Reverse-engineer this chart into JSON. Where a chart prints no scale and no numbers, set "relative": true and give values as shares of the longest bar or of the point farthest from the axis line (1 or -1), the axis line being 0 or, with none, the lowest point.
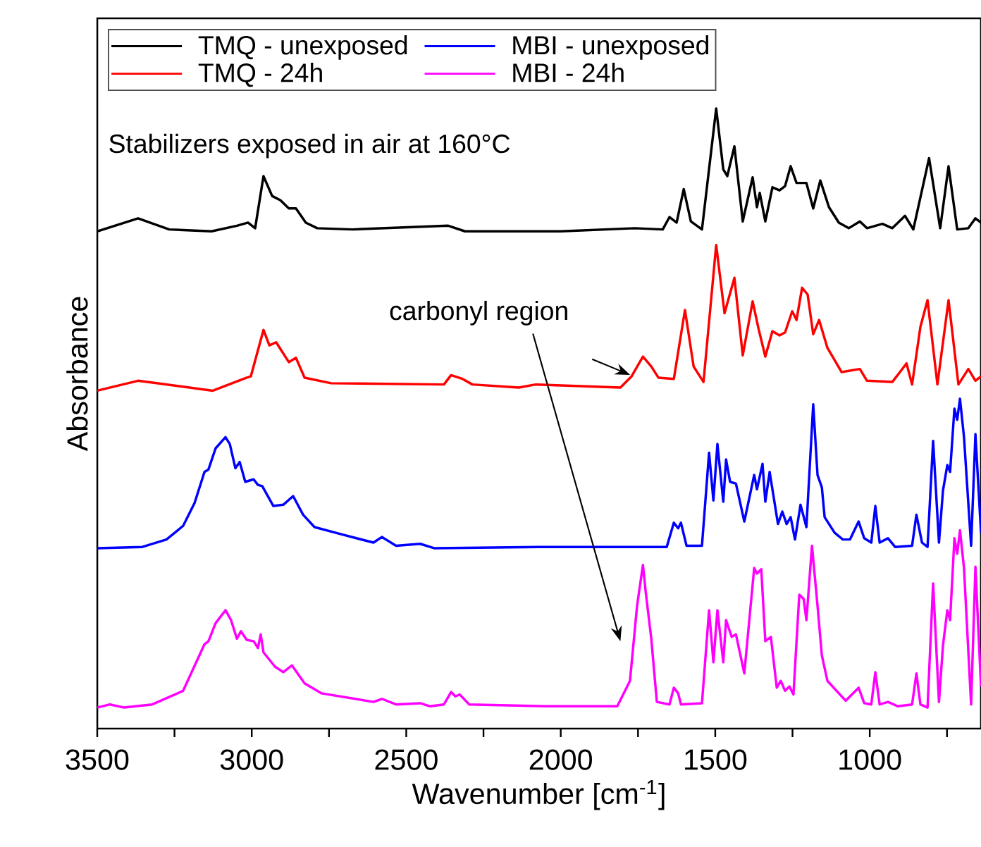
{
  "chart_data": {
    "type": "line",
    "relative": true,
    "xlabel": "Wavenumber [cm$^{-1}$]",
    "ylabel": "Absorbance",
    "xlim": [
      3500,
      640
    ],
    "xticks": [
      3500,
      {
        "value": 3250,
        "label": null
      },
      3000,
      {
        "value": 2750,
        "label": null
      },
      2500,
      {
        "value": 2250,
        "label": null
      },
      2000,
      {
        "value": 1750,
        "label": null
      },
      1500,
      {
        "value": 1250,
        "label": null
      },
      1000,
      {
        "value": 750,
        "label": null
      }
    ],
    "legend": "top left",
    "marker": "none",
    "line_style": "solid",
    "grid": false,
    "annotations": [
      "Stabilizers exposed in air at 160°C",
      "carbonyl region"
    ],
    "series": [
      {
        "name": "TMQ - unexposed",
        "color": "#000000",
        "x": [
          3500,
          3368,
          3267,
          3130,
          3048,
          3012,
          2989,
          2962,
          2934,
          2907,
          2880,
          2857,
          2825,
          2788,
          2674,
          2364,
          2310,
          2000,
          1760,
          1670,
          1648,
          1625,
          1602,
          1579,
          1543,
          1497,
          1474,
          1461,
          1438,
          1411,
          1379,
          1365,
          1356,
          1338,
          1315,
          1292,
          1274,
          1256,
          1237,
          1205,
          1183,
          1160,
          1132,
          1100,
          1068,
          1032,
          1009,
          959,
          927,
          886,
          859,
          808,
          772,
          745,
          717,
          681,
          658,
          640
        ],
        "values": [
          0.802,
          0.823,
          0.805,
          0.802,
          0.811,
          0.816,
          0.807,
          0.891,
          0.859,
          0.852,
          0.839,
          0.839,
          0.816,
          0.807,
          0.805,
          0.811,
          0.802,
          0.802,
          0.807,
          0.805,
          0.825,
          0.816,
          0.87,
          0.818,
          0.805,
          1.0,
          0.902,
          0.891,
          0.939,
          0.818,
          0.889,
          0.841,
          0.864,
          0.818,
          0.873,
          0.868,
          0.875,
          0.907,
          0.88,
          0.88,
          0.839,
          0.884,
          0.841,
          0.816,
          0.807,
          0.818,
          0.807,
          0.814,
          0.807,
          0.827,
          0.805,
          0.92,
          0.807,
          0.907,
          0.805,
          0.807,
          0.823,
          0.816
        ]
      },
      {
        "name": "TMQ - 24h",
        "color": "#ff0000",
        "x": [
          3500,
          3368,
          3126,
          3016,
          3003,
          2962,
          2943,
          2921,
          2880,
          2857,
          2829,
          2743,
          2378,
          2355,
          2318,
          2286,
          2136,
          2081,
          1807,
          1771,
          1734,
          1707,
          1684,
          1634,
          1598,
          1570,
          1538,
          1497,
          1470,
          1438,
          1411,
          1379,
          1360,
          1338,
          1315,
          1292,
          1274,
          1251,
          1237,
          1219,
          1201,
          1183,
          1164,
          1137,
          1091,
          1032,
          1009,
          927,
          881,
          863,
          836,
          813,
          781,
          745,
          713,
          681,
          658,
          640
        ],
        "values": [
          0.545,
          0.561,
          0.545,
          0.566,
          0.568,
          0.643,
          0.618,
          0.623,
          0.591,
          0.598,
          0.566,
          0.557,
          0.555,
          0.57,
          0.564,
          0.555,
          0.55,
          0.555,
          0.55,
          0.568,
          0.6,
          0.584,
          0.566,
          0.564,
          0.675,
          0.584,
          0.559,
          0.78,
          0.67,
          0.727,
          0.602,
          0.689,
          0.645,
          0.6,
          0.641,
          0.634,
          0.639,
          0.673,
          0.659,
          0.711,
          0.7,
          0.636,
          0.659,
          0.614,
          0.575,
          0.58,
          0.561,
          0.559,
          0.589,
          0.555,
          0.648,
          0.691,
          0.555,
          0.691,
          0.555,
          0.58,
          0.561,
          0.568
        ]
      },
      {
        "name": "MBI - unexposed",
        "color": "#0000ff",
        "x": [
          3500,
          3354,
          3276,
          3222,
          3185,
          3153,
          3140,
          3117,
          3085,
          3071,
          3053,
          3039,
          3021,
          2994,
          2980,
          2966,
          2930,
          2898,
          2866,
          2834,
          2797,
          2715,
          2606,
          2579,
          2533,
          2455,
          2410,
          2045,
          1657,
          1634,
          1620,
          1611,
          1593,
          1543,
          1520,
          1506,
          1493,
          1474,
          1465,
          1452,
          1433,
          1406,
          1374,
          1365,
          1347,
          1338,
          1324,
          1297,
          1283,
          1269,
          1256,
          1242,
          1224,
          1205,
          1183,
          1169,
          1155,
          1146,
          1114,
          1087,
          1064,
          1036,
          1018,
          995,
          982,
          968,
          941,
          918,
          863,
          849,
          831,
          813,
          795,
          776,
          763,
          749,
          740,
          726,
          717,
          708,
          695,
          672,
          658,
          640
        ],
        "values": [
          0.291,
          0.293,
          0.305,
          0.327,
          0.364,
          0.414,
          0.418,
          0.452,
          0.47,
          0.459,
          0.42,
          0.43,
          0.398,
          0.402,
          0.393,
          0.391,
          0.359,
          0.361,
          0.375,
          0.345,
          0.325,
          0.314,
          0.3,
          0.309,
          0.295,
          0.298,
          0.291,
          0.293,
          0.293,
          0.332,
          0.323,
          0.332,
          0.295,
          0.295,
          0.445,
          0.368,
          0.459,
          0.366,
          0.434,
          0.398,
          0.395,
          0.334,
          0.409,
          0.386,
          0.427,
          0.366,
          0.414,
          0.33,
          0.35,
          0.33,
          0.341,
          0.305,
          0.361,
          0.325,
          0.523,
          0.409,
          0.389,
          0.341,
          0.316,
          0.305,
          0.305,
          0.334,
          0.307,
          0.3,
          0.359,
          0.3,
          0.307,
          0.293,
          0.295,
          0.345,
          0.3,
          0.293,
          0.464,
          0.3,
          0.384,
          0.425,
          0.414,
          0.516,
          0.498,
          0.532,
          0.47,
          0.295,
          0.475,
          0.316
        ]
      },
      {
        "name": "MBI - 24h",
        "color": "#ff00ff",
        "x": [
          3500,
          3459,
          3413,
          3322,
          3222,
          3153,
          3140,
          3117,
          3085,
          3067,
          3048,
          3035,
          3016,
          2994,
          2980,
          2971,
          2962,
          2925,
          2898,
          2870,
          2829,
          2775,
          2606,
          2579,
          2533,
          2455,
          2423,
          2378,
          2355,
          2341,
          2327,
          2296,
          2045,
          1817,
          1776,
          1753,
          1734,
          1725,
          1707,
          1689,
          1648,
          1634,
          1620,
          1611,
          1543,
          1520,
          1506,
          1493,
          1474,
          1465,
          1447,
          1433,
          1406,
          1374,
          1365,
          1351,
          1338,
          1320,
          1301,
          1288,
          1274,
          1260,
          1247,
          1228,
          1214,
          1205,
          1187,
          1169,
          1155,
          1137,
          1078,
          1036,
          1018,
          995,
          982,
          968,
          941,
          909,
          863,
          849,
          836,
          813,
          795,
          776,
          763,
          749,
          740,
          726,
          717,
          708,
          695,
          672,
          658,
          640
        ],
        "values": [
          0.034,
          0.039,
          0.034,
          0.039,
          0.061,
          0.136,
          0.141,
          0.17,
          0.191,
          0.175,
          0.145,
          0.157,
          0.143,
          0.141,
          0.13,
          0.152,
          0.123,
          0.1,
          0.091,
          0.102,
          0.073,
          0.057,
          0.043,
          0.048,
          0.039,
          0.041,
          0.036,
          0.039,
          0.059,
          0.052,
          0.055,
          0.039,
          0.036,
          0.036,
          0.077,
          0.198,
          0.264,
          0.22,
          0.145,
          0.043,
          0.039,
          0.066,
          0.057,
          0.039,
          0.041,
          0.191,
          0.107,
          0.191,
          0.107,
          0.175,
          0.148,
          0.152,
          0.089,
          0.259,
          0.25,
          0.257,
          0.141,
          0.148,
          0.066,
          0.077,
          0.061,
          0.068,
          0.055,
          0.216,
          0.209,
          0.175,
          0.295,
          0.198,
          0.118,
          0.077,
          0.045,
          0.066,
          0.041,
          0.039,
          0.091,
          0.039,
          0.043,
          0.036,
          0.039,
          0.089,
          0.039,
          0.034,
          0.234,
          0.043,
          0.134,
          0.191,
          0.175,
          0.307,
          0.282,
          0.32,
          0.259,
          0.039,
          0.261,
          0.068
        ]
      }
    ]
  }
}
